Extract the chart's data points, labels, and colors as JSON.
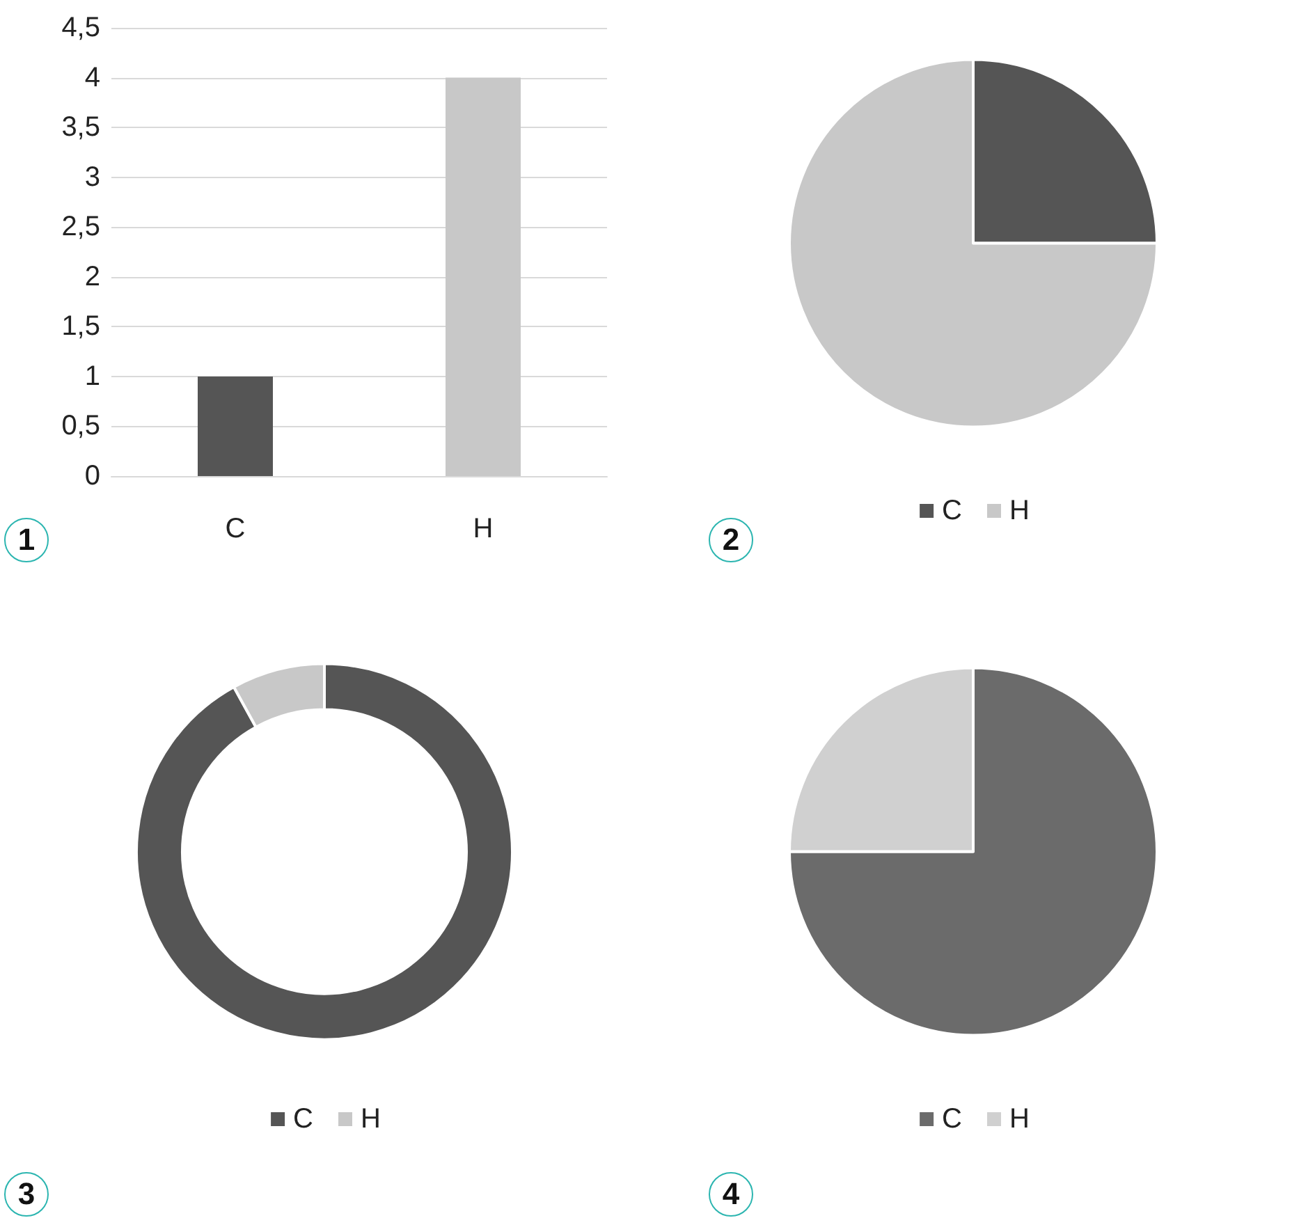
{
  "chart_data": [
    {
      "type": "bar",
      "categories": [
        "C",
        "H"
      ],
      "values": [
        1,
        4
      ],
      "colors": [
        "#555555",
        "#c8c8c8"
      ],
      "ylim": [
        0,
        4.5
      ],
      "yticks": [
        0,
        {
          "value": 0.5,
          "label": "0,5"
        },
        1,
        {
          "value": 1.5,
          "label": "1,5"
        },
        2,
        {
          "value": 2.5,
          "label": "2,5"
        },
        3,
        {
          "value": 3.5,
          "label": "3,5"
        },
        4,
        {
          "value": 4.5,
          "label": "4,5"
        }
      ],
      "grid": "y",
      "legend": false,
      "annotations": [
        "1"
      ]
    },
    {
      "type": "pie",
      "categories": [
        "C",
        "H"
      ],
      "values": [
        25,
        75
      ],
      "colors": [
        "#555555",
        "#c8c8c8"
      ],
      "legend": "bottom",
      "annotations": [
        "2"
      ]
    },
    {
      "type": "donut",
      "categories": [
        "C",
        "H"
      ],
      "values": [
        92,
        8
      ],
      "colors": [
        "#555555",
        "#c8c8c8"
      ],
      "legend": "bottom",
      "annotations": [
        "3"
      ]
    },
    {
      "type": "pie",
      "categories": [
        "C",
        "H"
      ],
      "values": [
        75,
        25
      ],
      "colors": [
        "#6b6b6b",
        "#d0d0d0"
      ],
      "legend": "bottom",
      "annotations": [
        "4"
      ]
    }
  ]
}
